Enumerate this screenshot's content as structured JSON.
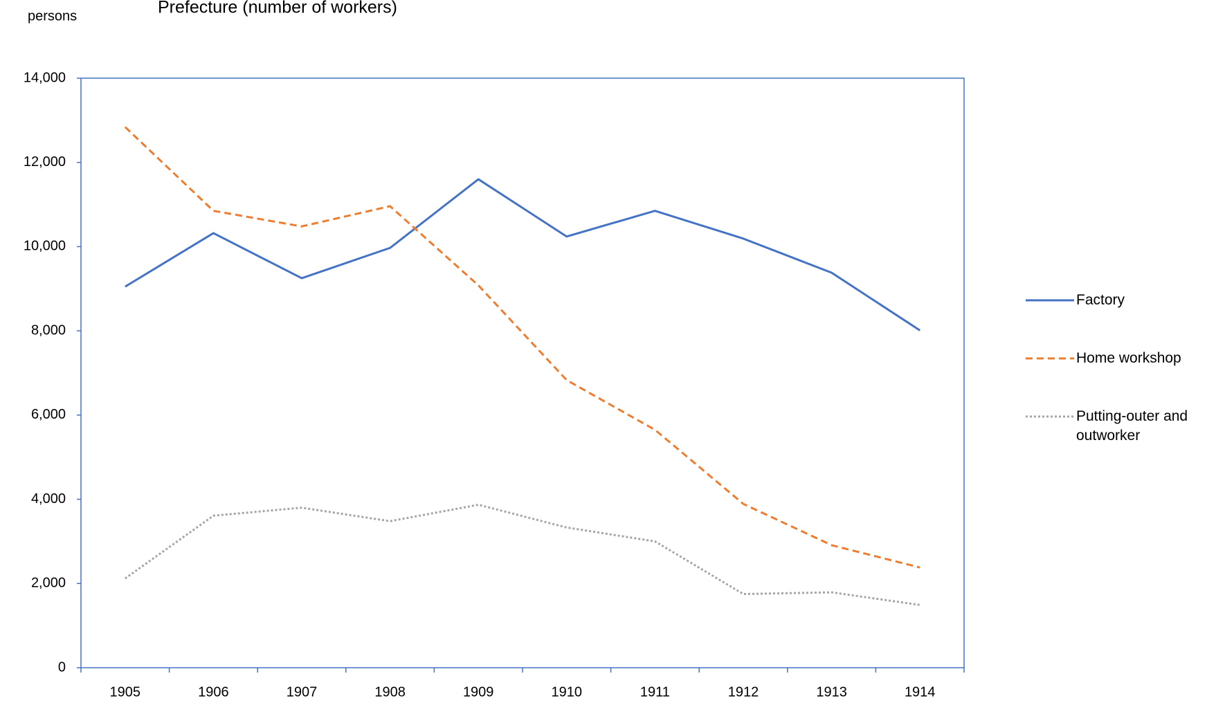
{
  "chart_data": {
    "type": "line",
    "title": "Prefecture (number of workers)",
    "y_label": "persons",
    "categories": [
      "1905",
      "1906",
      "1907",
      "1908",
      "1909",
      "1910",
      "1911",
      "1912",
      "1913",
      "1914"
    ],
    "series": [
      {
        "name": "Factory",
        "color": "#4472c4",
        "dash": "solid",
        "values": [
          9050,
          10320,
          9250,
          9970,
          11600,
          10240,
          10850,
          10190,
          9380,
          8010
        ]
      },
      {
        "name": "Home workshop",
        "color": "#ed7d31",
        "dash": "dashed",
        "values": [
          12840,
          10850,
          10480,
          10960,
          9080,
          6830,
          5650,
          3890,
          2910,
          2380
        ]
      },
      {
        "name": "Putting-outer and outworker",
        "color": "#a5a5a5",
        "dash": "dotted",
        "values": [
          2120,
          3610,
          3800,
          3480,
          3870,
          3330,
          3000,
          1750,
          1790,
          1490
        ]
      }
    ],
    "ylim": [
      0,
      14000
    ],
    "yticks": [
      0,
      {
        "value": 2000,
        "label": "2,000"
      },
      {
        "value": 4000,
        "label": "4,000"
      },
      {
        "value": 6000,
        "label": "6,000"
      },
      {
        "value": 8000,
        "label": "8,000"
      },
      {
        "value": 10000,
        "label": "10,000"
      },
      {
        "value": 12000,
        "label": "12,000"
      },
      {
        "value": 14000,
        "label": "14,000"
      }
    ],
    "grid": false,
    "legend": "right"
  }
}
